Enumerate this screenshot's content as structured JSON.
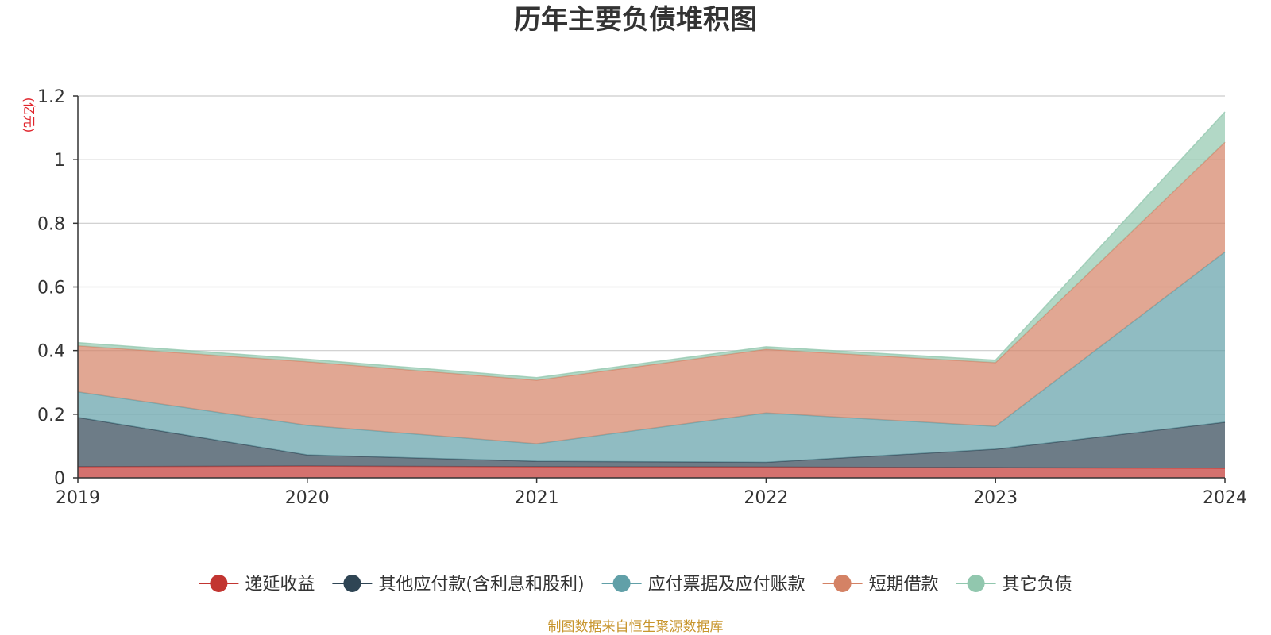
{
  "chart_data": {
    "type": "area",
    "title": "历年主要负债堆积图",
    "unit_label": "(亿元)",
    "x": [
      "2019",
      "2020",
      "2021",
      "2022",
      "2023",
      "2024"
    ],
    "ylim": [
      0,
      1.2
    ],
    "yticks": [
      "0",
      "0.2",
      "0.4",
      "0.6",
      "0.8",
      "1",
      "1.2"
    ],
    "stacked": true,
    "grid": true,
    "legend_position": "bottom",
    "series": [
      {
        "name": "递延收益",
        "color": "#c23531",
        "values": [
          0.035,
          0.037,
          0.035,
          0.034,
          0.032,
          0.03
        ]
      },
      {
        "name": "其他应付款(含利息和股利)",
        "color": "#2f4554",
        "values": [
          0.155,
          0.035,
          0.017,
          0.015,
          0.058,
          0.145
        ]
      },
      {
        "name": "应付票据及应付账款",
        "color": "#61a0a8",
        "values": [
          0.08,
          0.093,
          0.055,
          0.155,
          0.072,
          0.535
        ]
      },
      {
        "name": "短期借款",
        "color": "#d48265",
        "values": [
          0.145,
          0.2,
          0.2,
          0.2,
          0.2,
          0.345
        ]
      },
      {
        "name": "其它负债",
        "color": "#91c7ae",
        "values": [
          0.01,
          0.008,
          0.008,
          0.008,
          0.008,
          0.095
        ]
      }
    ],
    "source": "制图数据来自恒生聚源数据库"
  }
}
